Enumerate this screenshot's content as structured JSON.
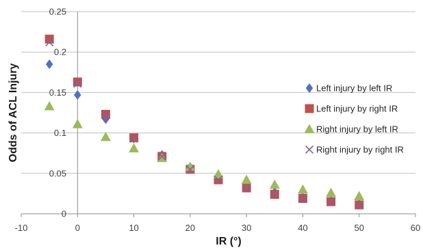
{
  "chart_data": {
    "type": "scatter",
    "title": "",
    "xlabel": "IR (°)",
    "ylabel": "Odds of ACL Injury",
    "xlim": [
      -10,
      60
    ],
    "ylim": [
      0,
      0.25
    ],
    "x_ticks": [
      "-10",
      "0",
      "10",
      "20",
      "30",
      "40",
      "50",
      "60"
    ],
    "y_ticks": [
      "0",
      "0.05",
      "0.1",
      "0.15",
      "0.2",
      "0.25"
    ],
    "grid": "horizontal",
    "legend_position": "right",
    "series": [
      {
        "name": "Left injury by left IR",
        "marker": "diamond",
        "color": "#4f71be",
        "x": [
          -5,
          0,
          5,
          10,
          15,
          20,
          25,
          30,
          35,
          40,
          45,
          50
        ],
        "y": [
          0.185,
          0.147,
          0.117,
          0.093,
          0.073,
          0.058,
          0.045,
          0.035,
          0.027,
          0.021,
          0.016,
          0.012
        ]
      },
      {
        "name": "Left injury by right IR",
        "marker": "square",
        "color": "#c0504d",
        "x": [
          -5,
          0,
          5,
          10,
          15,
          20,
          25,
          30,
          35,
          40,
          45,
          50
        ],
        "y": [
          0.216,
          0.163,
          0.123,
          0.094,
          0.071,
          0.055,
          0.042,
          0.032,
          0.024,
          0.019,
          0.015,
          0.011
        ]
      },
      {
        "name": "Right injury by left IR",
        "marker": "triangle",
        "color": "#9bbb59",
        "x": [
          -5,
          0,
          5,
          10,
          15,
          20,
          25,
          30,
          35,
          40,
          45,
          50
        ],
        "y": [
          0.133,
          0.111,
          0.095,
          0.081,
          0.069,
          0.058,
          0.049,
          0.042,
          0.036,
          0.03,
          0.026,
          0.022
        ]
      },
      {
        "name": "Right injury by right IR",
        "marker": "x",
        "color": "#8064a2",
        "x": [
          -5,
          0,
          5,
          10,
          15,
          20,
          25,
          30,
          35,
          40,
          45,
          50
        ],
        "y": [
          0.212,
          0.161,
          0.122,
          0.093,
          0.071,
          0.055,
          0.042,
          0.032,
          0.025,
          0.019,
          0.015,
          0.011
        ]
      }
    ]
  }
}
